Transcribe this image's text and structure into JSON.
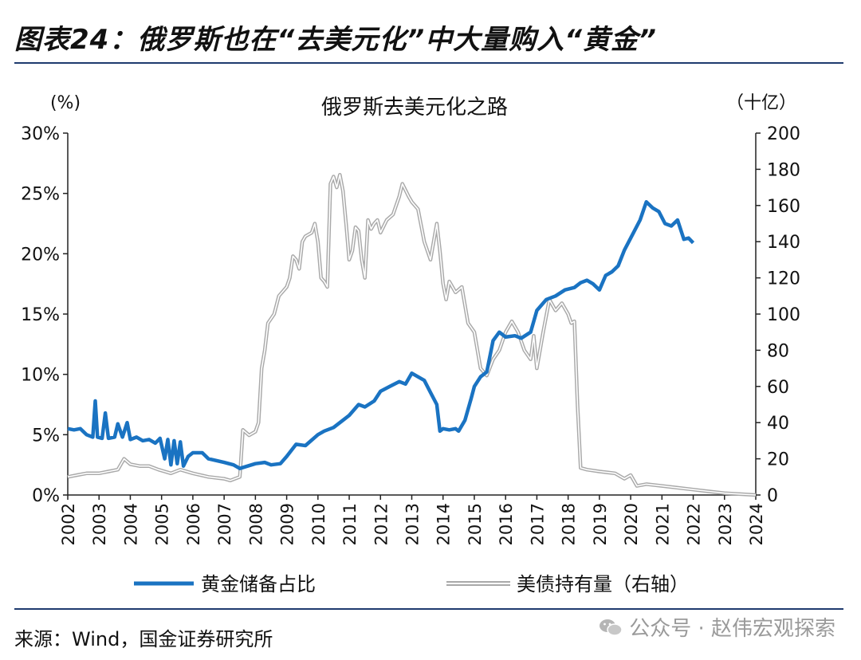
{
  "figure": {
    "title": "图表24：俄罗斯也在“去美元化”中大量购入“黄金”",
    "source": "来源：Wind，国金证券研究所",
    "watermark": "公众号 · 赵伟宏观探索",
    "watermark_icon": "wechat-icon"
  },
  "chart_data": {
    "type": "line",
    "title": "俄罗斯去美元化之路",
    "y_left_unit": "(%)",
    "y_right_unit": "（十亿）",
    "y_left_range": [
      0,
      30
    ],
    "y_left_ticks": [
      "0%",
      "5%",
      "10%",
      "15%",
      "20%",
      "25%",
      "30%"
    ],
    "y_right_range": [
      0,
      200
    ],
    "y_right_ticks": [
      "0",
      "20",
      "40",
      "60",
      "80",
      "100",
      "120",
      "140",
      "160",
      "180",
      "200"
    ],
    "x_range": [
      2002,
      2024
    ],
    "x_ticks": [
      "2002",
      "2003",
      "2004",
      "2005",
      "2006",
      "2007",
      "2008",
      "2009",
      "2010",
      "2011",
      "2012",
      "2013",
      "2014",
      "2015",
      "2016",
      "2017",
      "2018",
      "2019",
      "2020",
      "2021",
      "2022",
      "2023",
      "2024"
    ],
    "legend_position": "bottom",
    "grid": false,
    "series": [
      {
        "name": "黄金储备占比",
        "axis": "left",
        "color": "#1a73c2",
        "points": [
          [
            2002.0,
            5.5
          ],
          [
            2002.2,
            5.4
          ],
          [
            2002.4,
            5.5
          ],
          [
            2002.6,
            5.0
          ],
          [
            2002.8,
            4.8
          ],
          [
            2002.88,
            7.8
          ],
          [
            2002.95,
            4.8
          ],
          [
            2003.1,
            4.7
          ],
          [
            2003.2,
            6.8
          ],
          [
            2003.3,
            4.7
          ],
          [
            2003.5,
            4.8
          ],
          [
            2003.6,
            5.9
          ],
          [
            2003.75,
            4.8
          ],
          [
            2003.9,
            6.0
          ],
          [
            2004.0,
            4.6
          ],
          [
            2004.2,
            4.8
          ],
          [
            2004.4,
            4.5
          ],
          [
            2004.6,
            4.6
          ],
          [
            2004.8,
            4.3
          ],
          [
            2004.95,
            4.7
          ],
          [
            2005.1,
            3.0
          ],
          [
            2005.2,
            4.6
          ],
          [
            2005.3,
            2.5
          ],
          [
            2005.4,
            4.5
          ],
          [
            2005.5,
            2.6
          ],
          [
            2005.6,
            4.4
          ],
          [
            2005.7,
            2.4
          ],
          [
            2005.85,
            3.2
          ],
          [
            2006.0,
            3.5
          ],
          [
            2006.3,
            3.5
          ],
          [
            2006.5,
            3.0
          ],
          [
            2007.0,
            2.7
          ],
          [
            2007.3,
            2.5
          ],
          [
            2007.5,
            2.2
          ],
          [
            2008.0,
            2.6
          ],
          [
            2008.3,
            2.7
          ],
          [
            2008.5,
            2.5
          ],
          [
            2008.8,
            2.6
          ],
          [
            2009.0,
            3.2
          ],
          [
            2009.3,
            4.2
          ],
          [
            2009.6,
            4.1
          ],
          [
            2010.0,
            5.0
          ],
          [
            2010.2,
            5.3
          ],
          [
            2010.5,
            5.6
          ],
          [
            2010.8,
            6.2
          ],
          [
            2011.0,
            6.6
          ],
          [
            2011.3,
            7.5
          ],
          [
            2011.5,
            7.3
          ],
          [
            2011.8,
            7.8
          ],
          [
            2012.0,
            8.6
          ],
          [
            2012.3,
            9.0
          ],
          [
            2012.6,
            9.4
          ],
          [
            2012.8,
            9.2
          ],
          [
            2013.0,
            10.1
          ],
          [
            2013.2,
            9.8
          ],
          [
            2013.4,
            9.5
          ],
          [
            2013.6,
            8.5
          ],
          [
            2013.8,
            7.5
          ],
          [
            2013.9,
            5.3
          ],
          [
            2014.0,
            5.5
          ],
          [
            2014.2,
            5.4
          ],
          [
            2014.4,
            5.5
          ],
          [
            2014.5,
            5.3
          ],
          [
            2014.7,
            6.2
          ],
          [
            2014.9,
            8.0
          ],
          [
            2015.0,
            9.0
          ],
          [
            2015.2,
            9.8
          ],
          [
            2015.4,
            10.2
          ],
          [
            2015.6,
            12.8
          ],
          [
            2015.8,
            13.5
          ],
          [
            2016.0,
            13.1
          ],
          [
            2016.3,
            13.2
          ],
          [
            2016.5,
            13.0
          ],
          [
            2016.8,
            13.5
          ],
          [
            2017.0,
            15.3
          ],
          [
            2017.3,
            16.2
          ],
          [
            2017.6,
            16.5
          ],
          [
            2017.9,
            17.0
          ],
          [
            2018.2,
            17.2
          ],
          [
            2018.4,
            17.6
          ],
          [
            2018.6,
            17.8
          ],
          [
            2018.8,
            17.5
          ],
          [
            2019.0,
            17.0
          ],
          [
            2019.2,
            18.2
          ],
          [
            2019.4,
            18.5
          ],
          [
            2019.6,
            19.0
          ],
          [
            2019.8,
            20.3
          ],
          [
            2020.0,
            21.3
          ],
          [
            2020.3,
            22.8
          ],
          [
            2020.5,
            24.3
          ],
          [
            2020.7,
            23.8
          ],
          [
            2020.9,
            23.5
          ],
          [
            2021.1,
            22.5
          ],
          [
            2021.3,
            22.3
          ],
          [
            2021.5,
            22.8
          ],
          [
            2021.7,
            21.2
          ],
          [
            2021.85,
            21.3
          ],
          [
            2022.0,
            20.9
          ]
        ]
      },
      {
        "name": "美债持有量（右轴）",
        "axis": "right",
        "color": "#a9a9a9",
        "points": [
          [
            2002.0,
            10
          ],
          [
            2002.3,
            11
          ],
          [
            2002.6,
            12
          ],
          [
            2003.0,
            12
          ],
          [
            2003.3,
            13
          ],
          [
            2003.6,
            14
          ],
          [
            2003.8,
            20
          ],
          [
            2004.0,
            17
          ],
          [
            2004.3,
            16
          ],
          [
            2004.6,
            16
          ],
          [
            2004.9,
            14
          ],
          [
            2005.1,
            13
          ],
          [
            2005.3,
            12
          ],
          [
            2005.6,
            14
          ],
          [
            2006.0,
            12
          ],
          [
            2006.5,
            10
          ],
          [
            2007.0,
            9
          ],
          [
            2007.2,
            8
          ],
          [
            2007.5,
            10
          ],
          [
            2007.6,
            36
          ],
          [
            2007.8,
            33
          ],
          [
            2008.0,
            35
          ],
          [
            2008.1,
            40
          ],
          [
            2008.2,
            70
          ],
          [
            2008.3,
            80
          ],
          [
            2008.4,
            95
          ],
          [
            2008.6,
            100
          ],
          [
            2008.75,
            110
          ],
          [
            2009.0,
            115
          ],
          [
            2009.1,
            120
          ],
          [
            2009.2,
            132
          ],
          [
            2009.3,
            130
          ],
          [
            2009.4,
            125
          ],
          [
            2009.5,
            140
          ],
          [
            2009.6,
            143
          ],
          [
            2009.8,
            145
          ],
          [
            2009.9,
            150
          ],
          [
            2010.0,
            140
          ],
          [
            2010.1,
            120
          ],
          [
            2010.2,
            118
          ],
          [
            2010.3,
            115
          ],
          [
            2010.4,
            172
          ],
          [
            2010.5,
            176
          ],
          [
            2010.6,
            170
          ],
          [
            2010.7,
            177
          ],
          [
            2010.8,
            168
          ],
          [
            2010.9,
            150
          ],
          [
            2011.0,
            130
          ],
          [
            2011.1,
            135
          ],
          [
            2011.2,
            148
          ],
          [
            2011.3,
            146
          ],
          [
            2011.4,
            130
          ],
          [
            2011.5,
            120
          ],
          [
            2011.6,
            152
          ],
          [
            2011.7,
            147
          ],
          [
            2011.8,
            150
          ],
          [
            2011.9,
            152
          ],
          [
            2012.0,
            145
          ],
          [
            2012.2,
            152
          ],
          [
            2012.4,
            155
          ],
          [
            2012.6,
            165
          ],
          [
            2012.7,
            172
          ],
          [
            2012.9,
            165
          ],
          [
            2013.0,
            162
          ],
          [
            2013.2,
            158
          ],
          [
            2013.4,
            140
          ],
          [
            2013.6,
            130
          ],
          [
            2013.8,
            150
          ],
          [
            2013.9,
            135
          ],
          [
            2014.0,
            117
          ],
          [
            2014.1,
            108
          ],
          [
            2014.2,
            118
          ],
          [
            2014.4,
            112
          ],
          [
            2014.6,
            115
          ],
          [
            2014.8,
            95
          ],
          [
            2015.0,
            90
          ],
          [
            2015.2,
            70
          ],
          [
            2015.4,
            66
          ],
          [
            2015.6,
            75
          ],
          [
            2015.8,
            80
          ],
          [
            2016.0,
            90
          ],
          [
            2016.2,
            96
          ],
          [
            2016.4,
            90
          ],
          [
            2016.6,
            80
          ],
          [
            2016.8,
            75
          ],
          [
            2016.9,
            88
          ],
          [
            2017.0,
            70
          ],
          [
            2017.2,
            90
          ],
          [
            2017.4,
            108
          ],
          [
            2017.6,
            102
          ],
          [
            2017.8,
            106
          ],
          [
            2018.0,
            100
          ],
          [
            2018.1,
            95
          ],
          [
            2018.2,
            96
          ],
          [
            2018.3,
            50
          ],
          [
            2018.4,
            15
          ],
          [
            2018.6,
            14
          ],
          [
            2019.0,
            13
          ],
          [
            2019.5,
            12
          ],
          [
            2019.8,
            9
          ],
          [
            2020.0,
            11
          ],
          [
            2020.2,
            5
          ],
          [
            2020.5,
            6
          ],
          [
            2021.0,
            5
          ],
          [
            2021.5,
            4
          ],
          [
            2022.0,
            3
          ],
          [
            2022.5,
            2
          ],
          [
            2023.0,
            1
          ],
          [
            2024.0,
            0
          ]
        ]
      }
    ]
  }
}
